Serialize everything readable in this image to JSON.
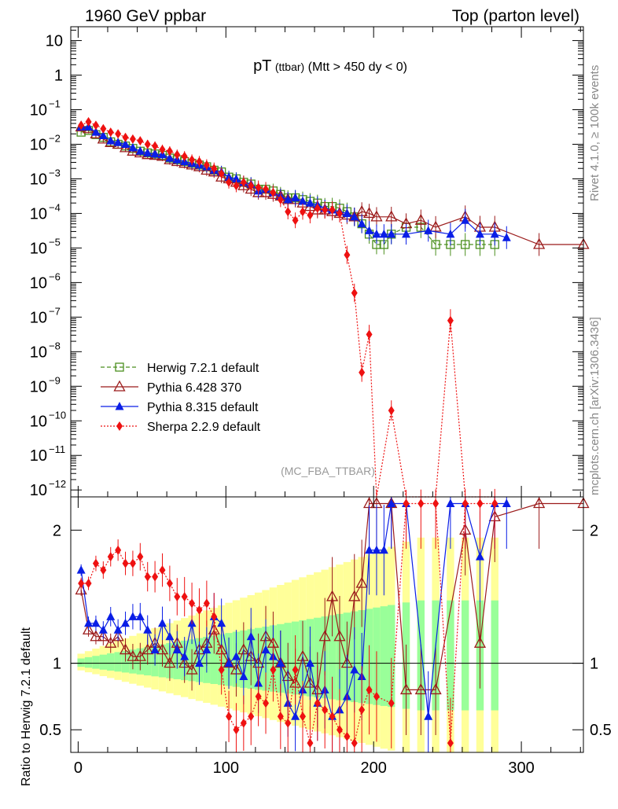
{
  "header": {
    "left": "1960 GeV ppbar",
    "right": "Top (parton level)"
  },
  "side_labels": {
    "rivet": "Rivet 4.1.0, ≥ 100k events",
    "mcplots": "mcplots.cern.ch [arXiv:1306.3436]"
  },
  "chart_data": {
    "type": "line",
    "title": "pT",
    "title_small": "(ttbar)",
    "title_cond": "(Mtt > 450 dy < 0)",
    "analysis_id": "(MC_FBA_TTBAR)",
    "ratio_ylabel": "Ratio to Herwig 7.2.1 default",
    "xlim": [
      -5,
      342
    ],
    "main_ylim_log10": [
      -12.2,
      1.4
    ],
    "ratio_ylim": [
      0.33,
      2.25
    ],
    "main_yticks": [
      {
        "exp": 1,
        "label": "10"
      },
      {
        "exp": 0,
        "label": "1"
      },
      {
        "exp": -1,
        "label": "10",
        "sup": "−1"
      },
      {
        "exp": -2,
        "label": "10",
        "sup": "−2"
      },
      {
        "exp": -3,
        "label": "10",
        "sup": "−3"
      },
      {
        "exp": -4,
        "label": "10",
        "sup": "−4"
      },
      {
        "exp": -5,
        "label": "10",
        "sup": "−5"
      },
      {
        "exp": -6,
        "label": "10",
        "sup": "−6"
      },
      {
        "exp": -7,
        "label": "10",
        "sup": "−7"
      },
      {
        "exp": -8,
        "label": "10",
        "sup": "−8"
      },
      {
        "exp": -9,
        "label": "10",
        "sup": "−9"
      },
      {
        "exp": -10,
        "label": "10",
        "sup": "−10"
      },
      {
        "exp": -11,
        "label": "10",
        "sup": "−11"
      },
      {
        "exp": -12,
        "label": "10",
        "sup": "−12"
      }
    ],
    "xticks": [
      {
        "value": 0,
        "label": "0"
      },
      {
        "value": 100,
        "label": "100"
      },
      {
        "value": 200,
        "label": "200"
      },
      {
        "value": 300,
        "label": "300"
      }
    ],
    "ratio_yticks": [
      {
        "value": 0.5,
        "label": "0.5"
      },
      {
        "value": 1,
        "label": "1"
      },
      {
        "value": 2,
        "label": "2"
      }
    ],
    "series": [
      {
        "name": "Herwig 7.2.1 default",
        "color": "#4b8f1e",
        "marker": "square-open",
        "dash": "5,3",
        "x": [
          2,
          7,
          12,
          17,
          22,
          27,
          32,
          37,
          42,
          47,
          52,
          57,
          62,
          67,
          72,
          77,
          82,
          87,
          92,
          97,
          102,
          107,
          112,
          117,
          122,
          127,
          132,
          137,
          142,
          147,
          152,
          157,
          162,
          167,
          172,
          177,
          182,
          187,
          192,
          197,
          202,
          207,
          212,
          222,
          232,
          242,
          252,
          262,
          272,
          282
        ],
        "y": [
          -1.65,
          -1.6,
          -1.72,
          -1.8,
          -1.93,
          -2.0,
          -2.05,
          -2.12,
          -2.2,
          -2.25,
          -2.28,
          -2.32,
          -2.4,
          -2.45,
          -2.5,
          -2.55,
          -2.6,
          -2.65,
          -2.75,
          -2.8,
          -2.95,
          -3.0,
          -3.1,
          -3.15,
          -3.3,
          -3.3,
          -3.35,
          -3.45,
          -3.55,
          -3.55,
          -3.6,
          -3.65,
          -3.7,
          -3.8,
          -3.8,
          -3.85,
          -3.95,
          -4.1,
          -4.3,
          -4.6,
          -4.9,
          -4.9,
          -4.6,
          -4.4,
          -4.4,
          -4.9,
          -4.9,
          -4.9,
          -4.9,
          -4.9
        ],
        "ratio": [
          1,
          1,
          1,
          1,
          1,
          1,
          1,
          1,
          1,
          1,
          1,
          1,
          1,
          1,
          1,
          1,
          1,
          1,
          1,
          1,
          1,
          1,
          1,
          1,
          1,
          1,
          1,
          1,
          1,
          1,
          1,
          1,
          1,
          1,
          1,
          1,
          1,
          1,
          1,
          1,
          1,
          1,
          1,
          1,
          1,
          1,
          1,
          1,
          1,
          1
        ]
      },
      {
        "name": "Pythia 6.428 370",
        "color": "#9b1b1b",
        "marker": "triangle-open",
        "dash": "",
        "x": [
          2,
          7,
          12,
          17,
          22,
          27,
          32,
          37,
          42,
          47,
          52,
          57,
          62,
          67,
          72,
          77,
          82,
          87,
          92,
          97,
          102,
          107,
          112,
          117,
          122,
          127,
          132,
          137,
          142,
          147,
          152,
          157,
          162,
          167,
          172,
          177,
          182,
          187,
          192,
          197,
          202,
          212,
          222,
          232,
          242,
          262,
          272,
          282,
          312,
          342
        ],
        "y": [
          -1.5,
          -1.55,
          -1.7,
          -1.85,
          -1.95,
          -2.0,
          -2.1,
          -2.2,
          -2.25,
          -2.3,
          -2.32,
          -2.35,
          -2.45,
          -2.5,
          -2.55,
          -2.6,
          -2.65,
          -2.75,
          -2.8,
          -2.95,
          -3.0,
          -3.1,
          -3.2,
          -3.3,
          -3.4,
          -3.4,
          -3.45,
          -3.5,
          -3.6,
          -3.6,
          -3.7,
          -3.8,
          -3.9,
          -3.9,
          -3.95,
          -4.0,
          -4.05,
          -4.1,
          -3.95,
          -4.0,
          -4.1,
          -4.1,
          -4.3,
          -4.2,
          -4.4,
          -4.1,
          -4.4,
          -4.4,
          -4.9,
          -4.9
        ],
        "ratio": [
          1.55,
          1.25,
          1.2,
          1.2,
          1.15,
          1.2,
          1.1,
          1.05,
          1.05,
          1.1,
          1.15,
          1.1,
          1.0,
          1.15,
          1.0,
          0.95,
          1.1,
          1.15,
          1.25,
          1.1,
          1.0,
          0.95,
          1.1,
          1.05,
          1.0,
          1.2,
          1.15,
          1.0,
          0.9,
          0.85,
          1.05,
          0.85,
          0.8,
          1.2,
          1.5,
          1.2,
          1.0,
          1.5,
          1.6,
          2.2,
          2.2,
          2.2,
          0.8,
          0.8,
          0.8,
          2.0,
          1.15,
          2.1,
          2.2,
          2.2
        ]
      },
      {
        "name": "Pythia 8.315 default",
        "color": "#0a1ee6",
        "marker": "triangle-filled",
        "dash": "",
        "x": [
          2,
          7,
          12,
          17,
          22,
          27,
          32,
          37,
          42,
          47,
          52,
          57,
          62,
          67,
          72,
          77,
          82,
          87,
          92,
          97,
          102,
          107,
          112,
          117,
          122,
          127,
          132,
          137,
          142,
          147,
          152,
          157,
          162,
          167,
          172,
          177,
          182,
          187,
          192,
          197,
          202,
          207,
          212,
          222,
          237,
          252,
          262,
          272,
          282,
          290
        ],
        "y": [
          -1.5,
          -1.5,
          -1.65,
          -1.75,
          -1.9,
          -1.95,
          -2.0,
          -2.1,
          -2.2,
          -2.25,
          -2.28,
          -2.3,
          -2.4,
          -2.45,
          -2.5,
          -2.55,
          -2.6,
          -2.65,
          -2.75,
          -2.8,
          -2.95,
          -3.0,
          -3.1,
          -3.15,
          -3.35,
          -3.3,
          -3.4,
          -3.5,
          -3.6,
          -3.55,
          -3.65,
          -3.7,
          -3.75,
          -3.85,
          -3.9,
          -3.95,
          -4.0,
          -4.1,
          -4.3,
          -4.5,
          -4.6,
          -4.6,
          -4.6,
          -4.6,
          -4.5,
          -4.6,
          -4.2,
          -4.6,
          -4.6,
          -4.7
        ],
        "ratio": [
          1.7,
          1.3,
          1.3,
          1.25,
          1.35,
          1.25,
          1.3,
          1.35,
          1.35,
          1.25,
          1.1,
          1.3,
          1.2,
          1.1,
          1.05,
          1.3,
          1.0,
          1.1,
          1.35,
          1.3,
          1.0,
          1.05,
          0.9,
          1.2,
          0.85,
          1.1,
          1.05,
          1.0,
          0.7,
          0.6,
          0.8,
          1.0,
          0.7,
          0.8,
          0.6,
          0.65,
          0.75,
          0.95,
          0.9,
          1.85,
          1.85,
          1.85,
          2.2,
          2.2,
          0.6,
          2.2,
          2.2,
          1.8,
          2.2,
          2.2
        ]
      },
      {
        "name": "Sherpa 2.2.9 default",
        "color": "#ee1111",
        "marker": "diamond-filled",
        "dash": "2,2",
        "x": [
          2,
          7,
          12,
          17,
          22,
          27,
          32,
          37,
          42,
          47,
          52,
          57,
          62,
          67,
          72,
          77,
          82,
          87,
          92,
          97,
          102,
          107,
          112,
          117,
          122,
          127,
          132,
          137,
          142,
          147,
          152,
          157,
          162,
          167,
          172,
          177,
          182,
          187,
          192,
          197,
          202,
          212,
          222,
          232,
          242,
          252,
          262,
          272,
          282
        ],
        "y": [
          -1.45,
          -1.35,
          -1.45,
          -1.55,
          -1.65,
          -1.7,
          -1.8,
          -1.85,
          -1.9,
          -2.0,
          -2.05,
          -2.15,
          -2.2,
          -2.3,
          -2.35,
          -2.45,
          -2.5,
          -2.6,
          -2.7,
          -2.85,
          -3.1,
          -3.2,
          -3.1,
          -3.2,
          -3.25,
          -3.3,
          -3.4,
          -3.6,
          -3.95,
          -4.2,
          -3.95,
          -4.05,
          -3.85,
          -3.9,
          -3.9,
          -4.0,
          -5.2,
          -6.3,
          -8.6,
          -7.5,
          -12.3,
          -9.7,
          -12.3,
          -12.3,
          -12.3,
          -7.1,
          -12.3,
          -12.3,
          -12.3
        ],
        "ratio": [
          1.6,
          1.6,
          1.75,
          1.7,
          1.8,
          1.85,
          1.75,
          1.75,
          1.8,
          1.65,
          1.65,
          1.7,
          1.6,
          1.5,
          1.5,
          1.45,
          1.4,
          1.45,
          1.35,
          0.95,
          0.6,
          0.5,
          0.55,
          0.6,
          0.75,
          0.7,
          0.95,
          0.6,
          0.55,
          0.95,
          0.6,
          0.4,
          0.7,
          0.65,
          0.6,
          0.5,
          0.45,
          0.4,
          0.65,
          0.8,
          0.75,
          0.7,
          2.2,
          2.2,
          2.2,
          0.4,
          2.2,
          2.2,
          2.2
        ]
      }
    ]
  }
}
